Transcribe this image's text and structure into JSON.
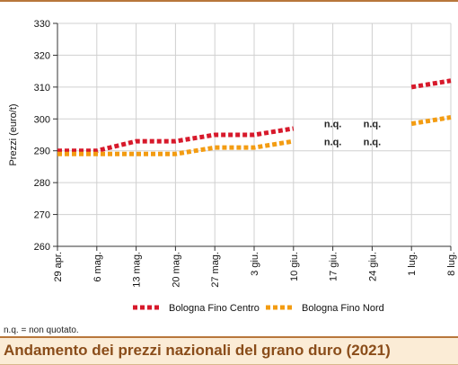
{
  "colors": {
    "series_centro": "#d7192b",
    "series_nord": "#f39c12",
    "title_text": "#8a4d1a",
    "title_bg": "#fbecd6",
    "rule": "#b8773b",
    "grid": "#d0d0d0"
  },
  "chart_data": {
    "type": "line",
    "title": "",
    "xlabel": "",
    "ylabel": "Prezzi (euro/t)",
    "ylim": [
      260,
      330
    ],
    "yticks": [
      260,
      270,
      280,
      290,
      300,
      310,
      320,
      330
    ],
    "categories": [
      "29 apr.",
      "6 mag.",
      "13 mag.",
      "20 mag.",
      "27 mag.",
      "3 giu.",
      "10 giu.",
      "17 giu.",
      "24 giu.",
      "1 lug.",
      "8 lug."
    ],
    "grid": true,
    "legend_position": "bottom",
    "series": [
      {
        "name": "Bologna Fino Centro",
        "color": "#d7192b",
        "values": [
          290,
          290,
          293,
          293,
          295,
          295,
          297,
          null,
          null,
          310,
          312
        ]
      },
      {
        "name": "Bologna Fino Nord",
        "color": "#f39c12",
        "values": [
          289,
          289,
          289,
          289,
          291,
          291,
          293,
          null,
          null,
          298.5,
          300.5
        ]
      }
    ],
    "annotations": [
      {
        "category": "17 giu.",
        "series": "Bologna Fino Centro",
        "text": "n.q."
      },
      {
        "category": "17 giu.",
        "series": "Bologna Fino Nord",
        "text": "n.q."
      },
      {
        "category": "24 giu.",
        "series": "Bologna Fino Centro",
        "text": "n.q."
      },
      {
        "category": "24 giu.",
        "series": "Bologna Fino Nord",
        "text": "n.q."
      }
    ]
  },
  "footnote": "n.q. = non quotato.",
  "title": "Andamento dei prezzi nazionali del grano duro (2021)"
}
